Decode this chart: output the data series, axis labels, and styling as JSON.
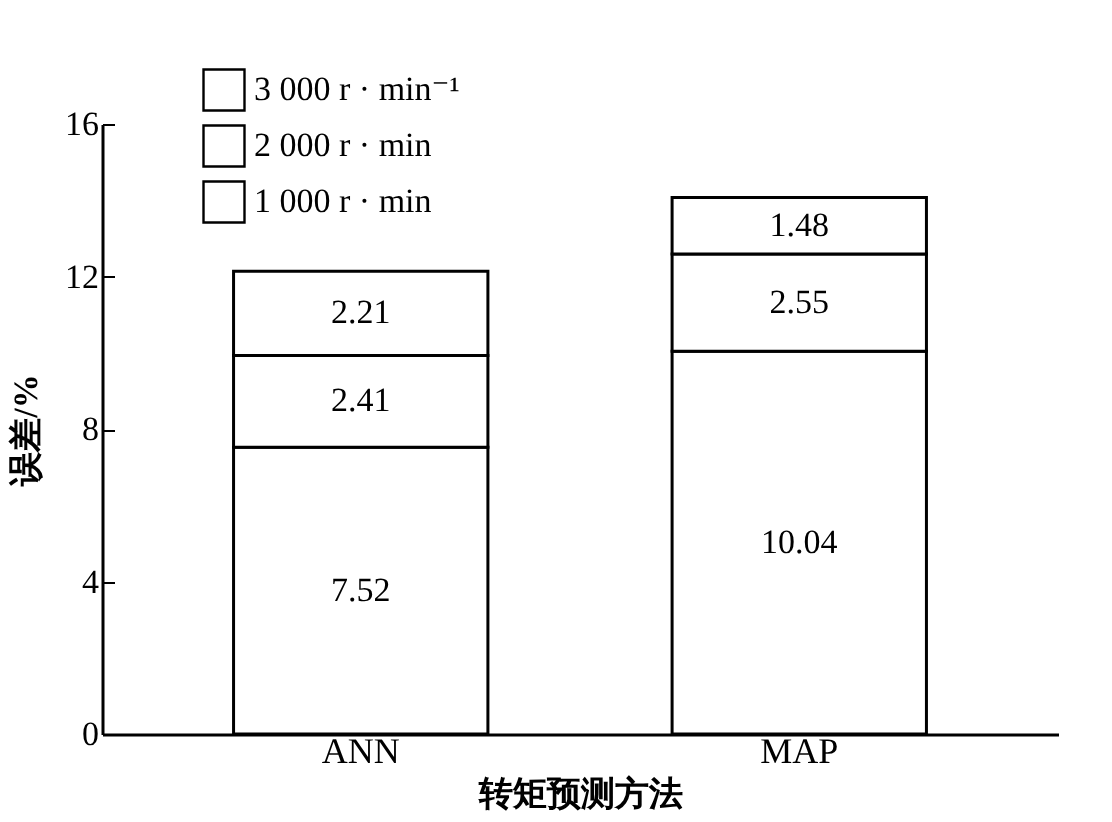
{
  "chart_data": {
    "type": "bar",
    "stacked": true,
    "xlabel": "转矩预测方法",
    "ylabel": "误差/%",
    "categories": [
      "ANN",
      "MAP"
    ],
    "series": [
      {
        "name": "1 000 r · min",
        "color": "#ffffff",
        "values": [
          7.52,
          10.04
        ]
      },
      {
        "name": "2 000 r · min",
        "color": "#ffffff",
        "values": [
          2.41,
          2.55
        ]
      },
      {
        "name": "3 000 r · min⁻¹",
        "color": "#ffffff",
        "values": [
          2.21,
          1.48
        ]
      }
    ],
    "ylim": [
      0,
      16
    ],
    "yticks": [
      0,
      4,
      8,
      12,
      16
    ],
    "data_labels": true,
    "legend": "top left",
    "grid": false
  }
}
